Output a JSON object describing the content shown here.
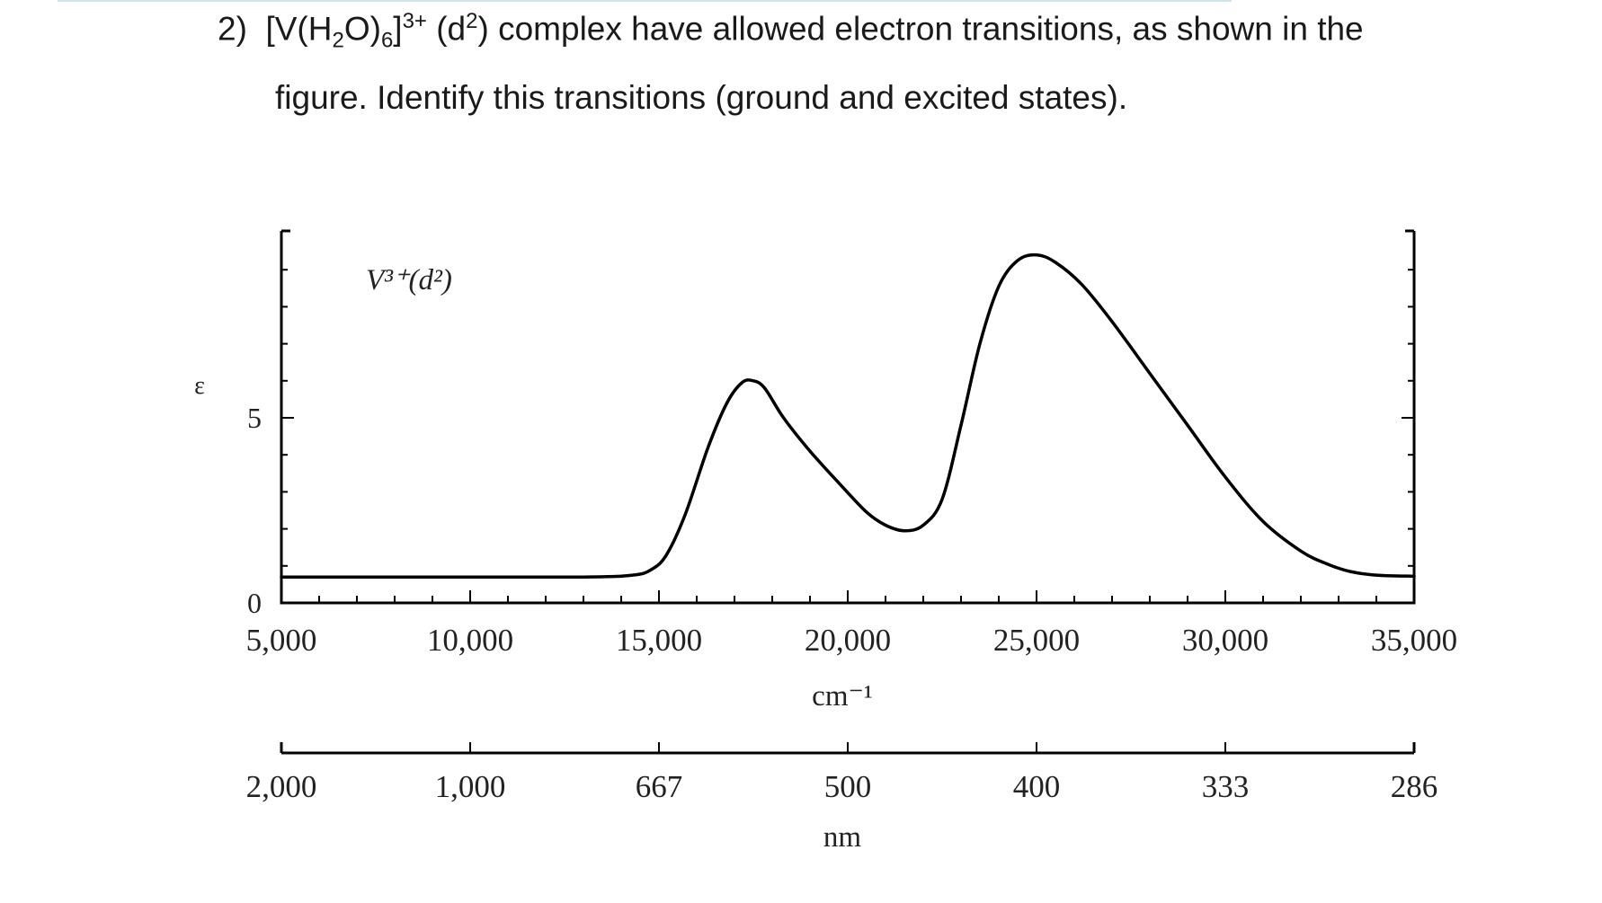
{
  "question": {
    "number": "2)",
    "text_before_formula": "[V(H",
    "h2o_sub": "2",
    "after_h2o": "O)",
    "sub6": "6",
    "after_sub6": "]",
    "charge": "3+",
    "d_open": " (d",
    "d_sup": "2",
    "text_after": ") complex have allowed electron transitions, as shown in the",
    "line2": "figure. Identify this transitions (ground and excited states)."
  },
  "chart_data": {
    "type": "line",
    "annotation": "V³⁺(d²)",
    "ylabel": "ε",
    "xlabel": "cm⁻¹",
    "x2label": "nm",
    "xlim": [
      5000,
      35000
    ],
    "ylim": [
      0,
      9.4
    ],
    "yticks": [
      {
        "value": 0,
        "label": "0"
      },
      {
        "value": 5,
        "label": "5"
      }
    ],
    "xticks": [
      {
        "value": 5000,
        "label": "5,000"
      },
      {
        "value": 10000,
        "label": "10,000"
      },
      {
        "value": 15000,
        "label": "15,000"
      },
      {
        "value": 20000,
        "label": "20,000"
      },
      {
        "value": 25000,
        "label": "25,000"
      },
      {
        "value": 30000,
        "label": "30,000"
      },
      {
        "value": 35000,
        "label": "35,000"
      }
    ],
    "x2ticks": [
      {
        "value": 5000,
        "label": "2,000"
      },
      {
        "value": 10000,
        "label": "1,000"
      },
      {
        "value": 15000,
        "label": "667"
      },
      {
        "value": 20000,
        "label": "500"
      },
      {
        "value": 25000,
        "label": "400"
      },
      {
        "value": 30000,
        "label": "333"
      },
      {
        "value": 35000,
        "label": "286"
      }
    ],
    "series": [
      {
        "x": [
          5000,
          9000,
          13000,
          14300,
          14800,
          15200,
          15700,
          16300,
          16800,
          17200,
          17500,
          17800,
          18300,
          19000,
          19800,
          20500,
          21000,
          21500,
          22000,
          22500,
          23000,
          23500,
          24000,
          24500,
          25000,
          25500,
          26200,
          27000,
          28000,
          29000,
          30000,
          31000,
          32000,
          32700,
          33300,
          34000,
          35000
        ],
        "y": [
          0.7,
          0.7,
          0.7,
          0.75,
          0.9,
          1.3,
          2.4,
          4.2,
          5.4,
          5.95,
          6.0,
          5.8,
          5.0,
          4.1,
          3.2,
          2.45,
          2.1,
          1.95,
          2.1,
          2.8,
          4.8,
          7.0,
          8.55,
          9.25,
          9.4,
          9.2,
          8.6,
          7.6,
          6.2,
          4.8,
          3.4,
          2.2,
          1.4,
          1.05,
          0.85,
          0.75,
          0.72
        ]
      }
    ]
  }
}
